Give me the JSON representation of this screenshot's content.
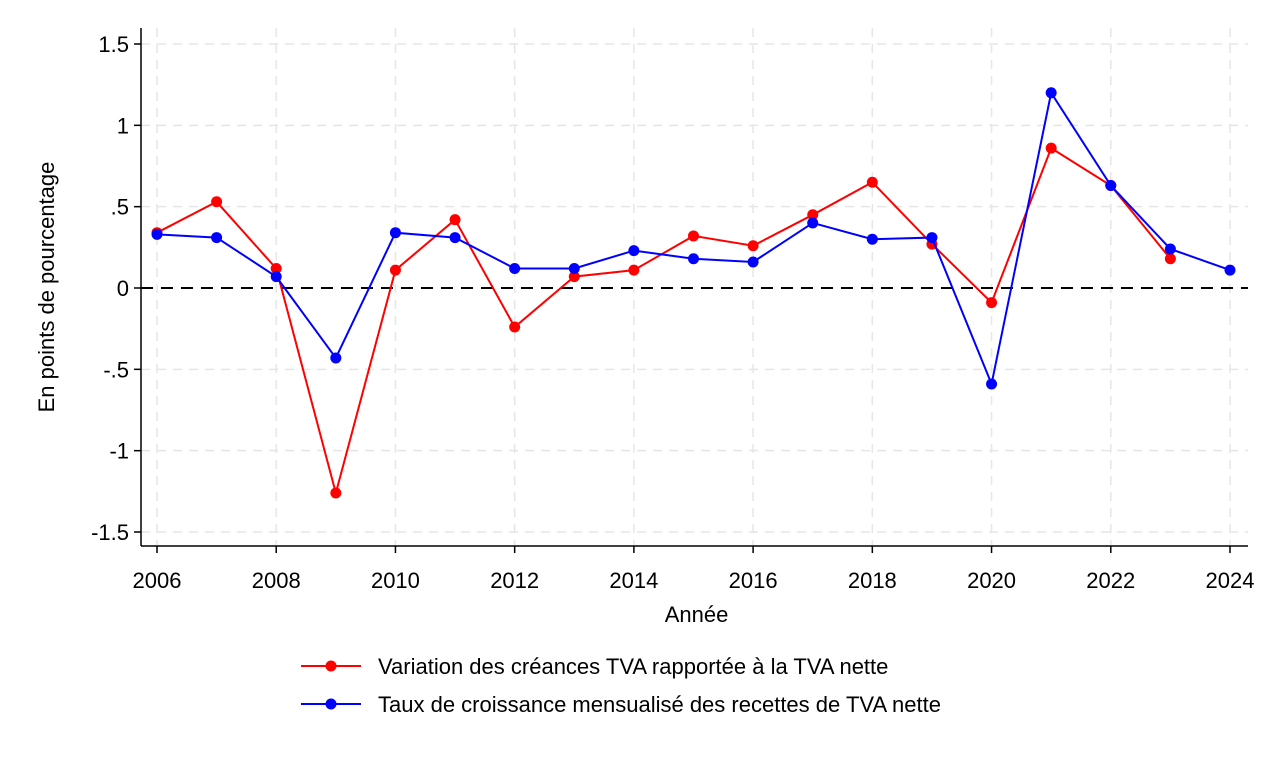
{
  "chart_data": {
    "type": "line",
    "title": "",
    "xlabel": "Année",
    "ylabel": "En points de pourcentage",
    "xlim": [
      2006,
      2024
    ],
    "ylim": [
      -1.5,
      1.5
    ],
    "x_ticks": [
      2006,
      2008,
      2010,
      2012,
      2014,
      2016,
      2018,
      2020,
      2022,
      2024
    ],
    "x_tick_labels": [
      "2006",
      "2008",
      "2010",
      "2012",
      "2014",
      "2016",
      "2018",
      "2020",
      "2022",
      "2024"
    ],
    "y_ticks": [
      -1.5,
      -1,
      -0.5,
      0,
      0.5,
      1,
      1.5
    ],
    "y_tick_labels": [
      "-1.5",
      "-1",
      "-.5",
      "0",
      ".5",
      "1",
      "1.5"
    ],
    "grid": true,
    "reference_line": {
      "y": 0,
      "style": "dashed",
      "color": "#000000"
    },
    "legend_position": "bottom",
    "series": [
      {
        "name": "Variation des créances TVA rapportée à la TVA nette",
        "color": "#ff0000",
        "x": [
          2006,
          2007,
          2008,
          2009,
          2010,
          2011,
          2012,
          2013,
          2014,
          2015,
          2016,
          2017,
          2018,
          2019,
          2020,
          2021,
          2022,
          2023
        ],
        "values": [
          0.34,
          0.53,
          0.12,
          -1.26,
          0.11,
          0.42,
          -0.24,
          0.07,
          0.11,
          0.32,
          0.26,
          0.45,
          0.65,
          0.27,
          -0.09,
          0.86,
          0.63,
          0.18
        ]
      },
      {
        "name": "Taux de croissance mensualisé des recettes de TVA nette",
        "color": "#0000ff",
        "x": [
          2006,
          2007,
          2008,
          2009,
          2010,
          2011,
          2012,
          2013,
          2014,
          2015,
          2016,
          2017,
          2018,
          2019,
          2020,
          2021,
          2022,
          2023,
          2024
        ],
        "values": [
          0.33,
          0.31,
          0.07,
          -0.43,
          0.34,
          0.31,
          0.12,
          0.12,
          0.23,
          0.18,
          0.16,
          0.4,
          0.3,
          0.31,
          -0.59,
          1.2,
          0.63,
          0.24,
          0.11
        ]
      }
    ]
  }
}
